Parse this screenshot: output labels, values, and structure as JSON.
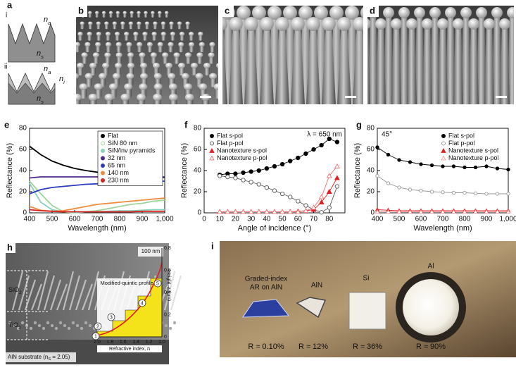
{
  "panels": {
    "a": {
      "label": "a",
      "i": "i",
      "ii": "ii",
      "labels_i": [
        {
          "text": "n",
          "sub": "a"
        },
        {
          "text": "n",
          "sub": "s"
        }
      ],
      "labels_ii": [
        {
          "text": "n",
          "sub": "a"
        },
        {
          "text": "n",
          "sub": "i"
        },
        {
          "text": "n",
          "sub": "s"
        }
      ]
    },
    "b": {
      "label": "b"
    },
    "c": {
      "label": "c"
    },
    "d": {
      "label": "d"
    },
    "h": {
      "label": "h",
      "scale_bar": "100 nm",
      "layer_top": {
        "text": "SiO",
        "sub": "2"
      },
      "layer_mid": {
        "text": "TiO",
        "sub": "2"
      },
      "substrate": {
        "text": "AlN substrate (n",
        "sub": "S",
        "tail": " = 2.05)"
      },
      "profile": "Modified-quintic profile",
      "xlabel": "Refractive index, n",
      "ylabel": "Height, z (μm)",
      "xticks": [
        "2.0",
        "1.8",
        "1.6",
        "1.4",
        "1.2",
        "1.0"
      ],
      "yticks": [
        "0",
        "0.2",
        "0.4",
        "0.6",
        "0.8"
      ],
      "steps": [
        "1",
        "2",
        "3",
        "4",
        "5"
      ]
    },
    "i": {
      "label": "i",
      "samples": [
        {
          "name": [
            "Graded-index",
            "AR on AlN"
          ],
          "r": "R ≈ 0.10%"
        },
        {
          "name": [
            "AlN"
          ],
          "r": "R ≈ 12%"
        },
        {
          "name": [
            "Si"
          ],
          "r": "R ≈ 36%"
        },
        {
          "name": [
            "Al"
          ],
          "r": "R ≈ 90%"
        }
      ]
    }
  },
  "chart_data": [
    {
      "type": "line",
      "panel_label": "e",
      "style": "line",
      "xlabel": "Wavelength (nm)",
      "ylabel": "Reflectance (%)",
      "xlim": [
        400,
        1000
      ],
      "ylim": [
        0,
        80
      ],
      "xticks": [
        400,
        500,
        600,
        700,
        800,
        900,
        {
          "value": 1000,
          "label": "1,000"
        }
      ],
      "yticks": [
        0,
        20,
        40,
        60,
        80
      ],
      "legend": "upper right",
      "x": [
        400,
        450,
        500,
        550,
        600,
        650,
        700,
        750,
        800,
        850,
        900,
        950,
        1000
      ],
      "series": [
        {
          "name": "Flat",
          "color": "#000000",
          "marker": "filled-circle",
          "values": [
            63,
            55,
            49,
            45,
            42,
            40,
            38.5,
            37.5,
            36.5,
            35.5,
            35,
            34,
            33.5
          ]
        },
        {
          "name": "SiN 80 nm",
          "color": "#9fd49a",
          "marker": "open-circle",
          "values": [
            30,
            18,
            7,
            1,
            0,
            1,
            2,
            4,
            6,
            8,
            9,
            11,
            12
          ]
        },
        {
          "name": "SiN/inv pyramids",
          "color": "#86d3bd",
          "marker": "filled-circle",
          "values": [
            28,
            10,
            3,
            1,
            0.5,
            1,
            1,
            1.5,
            2,
            2,
            2.5,
            3,
            3
          ]
        },
        {
          "name": "32 nm",
          "color": "#4b2a8a",
          "marker": "filled-circle",
          "values": [
            33,
            34,
            34,
            34,
            34,
            34,
            34,
            34,
            34,
            34,
            34,
            34,
            34
          ]
        },
        {
          "name": "65 nm",
          "color": "#2e3bbf",
          "marker": "filled-circle",
          "values": [
            18,
            22,
            24,
            25,
            26,
            27,
            27.5,
            28,
            28.5,
            29,
            29,
            29.5,
            30
          ]
        },
        {
          "name": "140 nm",
          "color": "#f08a3c",
          "marker": "filled-circle",
          "values": [
            6,
            2.5,
            1.5,
            2,
            4,
            6,
            8,
            9,
            10,
            11,
            12,
            13,
            14
          ]
        },
        {
          "name": "230 nm",
          "color": "#d62020",
          "marker": "filled-circle",
          "values": [
            3,
            2,
            1.5,
            1,
            1,
            1,
            1,
            1,
            1,
            1,
            1.5,
            1.5,
            1.5
          ]
        }
      ]
    },
    {
      "type": "line",
      "panel_label": "f",
      "style": "line+markers",
      "xlabel": "Angle of incidence (°)",
      "ylabel": "Reflectance (%)",
      "xlim": [
        0,
        90
      ],
      "ylim": [
        0,
        80
      ],
      "xticks": [
        0,
        10,
        20,
        30,
        40,
        50,
        60,
        70,
        80
      ],
      "yticks": [
        0,
        20,
        40,
        60,
        80
      ],
      "legend": "upper left",
      "annotation": "λ = 650 nm",
      "x": [
        10,
        15,
        20,
        25,
        30,
        35,
        40,
        45,
        50,
        55,
        60,
        65,
        70,
        75,
        80,
        85
      ],
      "series": [
        {
          "name": "Flat s-pol",
          "color": "#000000",
          "marker": "filled-circle",
          "values": [
            36,
            37,
            37,
            38,
            39,
            40,
            42,
            44,
            46,
            49,
            52,
            56,
            60,
            64,
            70,
            67
          ]
        },
        {
          "name": "Flat p-pol",
          "color": "#555555",
          "marker": "open-circle",
          "values": [
            35,
            34,
            33,
            31,
            29,
            27,
            24,
            21,
            18,
            15,
            11,
            7,
            3,
            0.5,
            5,
            25
          ]
        },
        {
          "name": "Nanotexture s-pol",
          "color": "#e02020",
          "marker": "filled-triangle",
          "values": [
            1,
            1,
            1,
            1,
            1,
            1,
            1,
            1,
            1,
            1,
            1.5,
            2,
            3,
            10,
            20,
            33
          ]
        },
        {
          "name": "Nanotexture p-pol",
          "color": "#f07070",
          "marker": "open-triangle",
          "values": [
            1,
            1,
            1,
            1,
            1,
            1,
            1,
            1,
            1,
            1,
            1,
            2,
            5,
            15,
            35,
            44
          ]
        }
      ]
    },
    {
      "type": "line",
      "panel_label": "g",
      "style": "line+markers",
      "xlabel": "Wavelength (nm)",
      "ylabel": "Reflectance (%)",
      "xlim": [
        400,
        1000
      ],
      "ylim": [
        0,
        80
      ],
      "xticks": [
        400,
        500,
        600,
        700,
        800,
        900,
        {
          "value": 1000,
          "label": "1,000"
        }
      ],
      "yticks": [
        0,
        20,
        40,
        60,
        80
      ],
      "legend": "upper right",
      "annotation": "45°",
      "x": [
        400,
        450,
        500,
        550,
        600,
        650,
        700,
        750,
        800,
        850,
        900,
        950,
        1000
      ],
      "series": [
        {
          "name": "Flat s-pol",
          "color": "#000000",
          "marker": "filled-circle",
          "values": [
            62,
            55,
            50,
            48,
            46,
            45,
            44,
            44,
            43,
            43,
            44,
            42,
            41
          ]
        },
        {
          "name": "Flat p-pol",
          "color": "#999999",
          "marker": "open-circle",
          "values": [
            35,
            28,
            24,
            22,
            21,
            20,
            19.5,
            19,
            19,
            18.5,
            18,
            18,
            18
          ]
        },
        {
          "name": "Nanotexture s-pol",
          "color": "#e02020",
          "marker": "filled-triangle",
          "values": [
            3,
            2.5,
            2,
            2,
            2,
            2,
            2,
            2,
            2,
            2,
            2,
            2,
            2
          ]
        },
        {
          "name": "Nanotexture p-pol",
          "color": "#f3a0a0",
          "marker": "open-triangle",
          "values": [
            1,
            1,
            1,
            1,
            1,
            1,
            1,
            1,
            1,
            1,
            1,
            1,
            1
          ]
        }
      ]
    }
  ]
}
